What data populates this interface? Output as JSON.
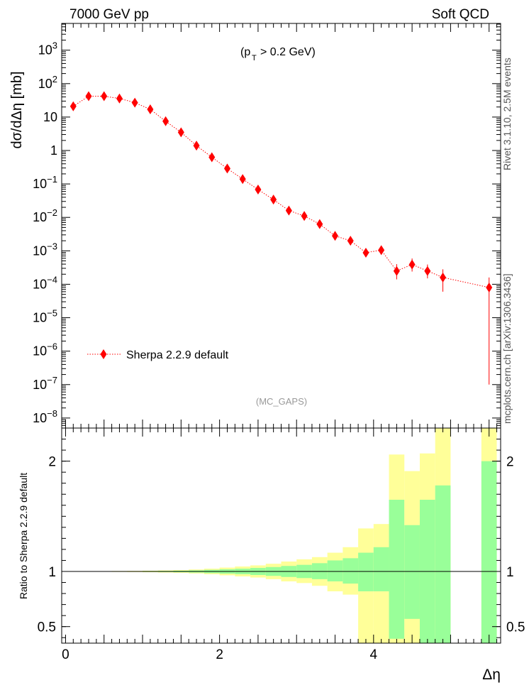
{
  "header": {
    "energy_label": "7000 GeV pp",
    "process_label": "Soft QCD"
  },
  "side_labels": {
    "rivet": "Rivet 3.1.10, 2.5M events",
    "mcplots": "mcplots.cern.ch [arXiv:1306.3436]"
  },
  "chart_data": [
    {
      "type": "scatter",
      "panel": "main",
      "scale": "log",
      "ylabel": "dσ/dΔη [mb]",
      "annotation": "(pT > 0.2 GeV)",
      "analysis_label": "(MC_GAPS)",
      "xlim": [
        -0.05,
        5.65
      ],
      "ylim_exp": [
        -8.3,
        3.8
      ],
      "y_tick_labels": [
        "10^-8",
        "10^-7",
        "10^-6",
        "10^-5",
        "10^-4",
        "10^-3",
        "10^-2",
        "10^-1",
        "1",
        "10",
        "10^2",
        "10^3"
      ],
      "legend": "top-left region, lower part",
      "series": [
        {
          "name": "Sherpa 2.2.9 default",
          "color": "#ff0000",
          "x": [
            0.1,
            0.3,
            0.5,
            0.7,
            0.9,
            1.1,
            1.3,
            1.5,
            1.7,
            1.9,
            2.1,
            2.3,
            2.5,
            2.7,
            2.9,
            3.1,
            3.3,
            3.5,
            3.7,
            3.9,
            4.1,
            4.3,
            4.5,
            4.7,
            4.9,
            5.5
          ],
          "y": [
            21,
            42,
            42,
            36,
            27,
            17,
            7.5,
            3.5,
            1.4,
            0.63,
            0.29,
            0.14,
            0.068,
            0.034,
            0.016,
            0.011,
            0.0063,
            0.0028,
            0.002,
            0.00088,
            0.00105,
            0.00025,
            0.00039,
            0.00025,
            0.00016,
            8e-05
          ],
          "yerr_up": [
            0,
            0,
            0,
            0,
            0,
            0,
            0,
            0,
            0,
            0,
            0,
            0,
            0,
            0,
            0,
            0,
            0,
            0,
            0,
            0.00018,
            0.00022,
            0.00015,
            0.0002,
            0.00014,
            0.00012,
            8e-05
          ],
          "yerr_down": [
            0,
            0,
            0,
            0,
            0,
            0,
            0,
            0,
            0,
            0,
            0,
            0,
            0,
            0,
            0,
            0,
            0,
            0,
            0,
            0.00016,
            0.0002,
            0.00011,
            0.00015,
            0.0001,
            0.0001,
            7.99e-05
          ]
        }
      ]
    },
    {
      "type": "area",
      "panel": "ratio",
      "ylabel": "Ratio to Sherpa 2.2.9 default",
      "xlabel": "Δη",
      "xlim": [
        -0.05,
        5.65
      ],
      "ylim": [
        0.35,
        2.3
      ],
      "y_ticks": [
        0.5,
        1,
        2
      ],
      "y_tick_labels": [
        "0.5",
        "1",
        "2"
      ],
      "x_ticks": [
        0,
        2,
        4
      ],
      "x_tick_labels": [
        "0",
        "2",
        "4"
      ],
      "reference_line": 1,
      "colors": {
        "inner_band": "#99ff99",
        "outer_band": "#ffff99"
      },
      "bins": [
        {
          "x0": 0.0,
          "x1": 0.2,
          "g_lo": 0.998,
          "g_hi": 1.002,
          "y_lo": 0.997,
          "y_hi": 1.003
        },
        {
          "x0": 0.2,
          "x1": 0.4,
          "g_lo": 0.998,
          "g_hi": 1.002,
          "y_lo": 0.997,
          "y_hi": 1.003
        },
        {
          "x0": 0.4,
          "x1": 0.6,
          "g_lo": 0.998,
          "g_hi": 1.002,
          "y_lo": 0.997,
          "y_hi": 1.003
        },
        {
          "x0": 0.6,
          "x1": 0.8,
          "g_lo": 0.998,
          "g_hi": 1.002,
          "y_lo": 0.996,
          "y_hi": 1.004
        },
        {
          "x0": 0.8,
          "x1": 1.0,
          "g_lo": 0.997,
          "g_hi": 1.003,
          "y_lo": 0.995,
          "y_hi": 1.005
        },
        {
          "x0": 1.0,
          "x1": 1.2,
          "g_lo": 0.996,
          "g_hi": 1.004,
          "y_lo": 0.993,
          "y_hi": 1.007
        },
        {
          "x0": 1.2,
          "x1": 1.4,
          "g_lo": 0.995,
          "g_hi": 1.005,
          "y_lo": 0.99,
          "y_hi": 1.01
        },
        {
          "x0": 1.4,
          "x1": 1.6,
          "g_lo": 0.993,
          "g_hi": 1.007,
          "y_lo": 0.987,
          "y_hi": 1.013
        },
        {
          "x0": 1.6,
          "x1": 1.8,
          "g_lo": 0.99,
          "g_hi": 1.01,
          "y_lo": 0.982,
          "y_hi": 1.018
        },
        {
          "x0": 1.8,
          "x1": 2.0,
          "g_lo": 0.985,
          "g_hi": 1.015,
          "y_lo": 0.975,
          "y_hi": 1.025
        },
        {
          "x0": 2.0,
          "x1": 2.2,
          "g_lo": 0.98,
          "g_hi": 1.02,
          "y_lo": 0.965,
          "y_hi": 1.035
        },
        {
          "x0": 2.2,
          "x1": 2.4,
          "g_lo": 0.975,
          "g_hi": 1.025,
          "y_lo": 0.955,
          "y_hi": 1.045
        },
        {
          "x0": 2.4,
          "x1": 2.6,
          "g_lo": 0.968,
          "g_hi": 1.032,
          "y_lo": 0.945,
          "y_hi": 1.055
        },
        {
          "x0": 2.6,
          "x1": 2.8,
          "g_lo": 0.96,
          "g_hi": 1.04,
          "y_lo": 0.93,
          "y_hi": 1.07
        },
        {
          "x0": 2.8,
          "x1": 3.0,
          "g_lo": 0.95,
          "g_hi": 1.05,
          "y_lo": 0.91,
          "y_hi": 1.09
        },
        {
          "x0": 3.0,
          "x1": 3.2,
          "g_lo": 0.94,
          "g_hi": 1.06,
          "y_lo": 0.895,
          "y_hi": 1.11
        },
        {
          "x0": 3.2,
          "x1": 3.4,
          "g_lo": 0.93,
          "g_hi": 1.075,
          "y_lo": 0.87,
          "y_hi": 1.13
        },
        {
          "x0": 3.4,
          "x1": 3.6,
          "g_lo": 0.91,
          "g_hi": 1.1,
          "y_lo": 0.82,
          "y_hi": 1.17
        },
        {
          "x0": 3.6,
          "x1": 3.8,
          "g_lo": 0.89,
          "g_hi": 1.12,
          "y_lo": 0.79,
          "y_hi": 1.22
        },
        {
          "x0": 3.8,
          "x1": 4.0,
          "g_lo": 0.82,
          "g_hi": 1.17,
          "y_lo": 0.35,
          "y_hi": 1.39
        },
        {
          "x0": 4.0,
          "x1": 4.2,
          "g_lo": 0.82,
          "g_hi": 1.22,
          "y_lo": 0.35,
          "y_hi": 1.43
        },
        {
          "x0": 4.2,
          "x1": 4.4,
          "g_lo": 0.39,
          "g_hi": 1.65,
          "y_lo": 0.35,
          "y_hi": 2.06
        },
        {
          "x0": 4.4,
          "x1": 4.6,
          "g_lo": 0.57,
          "g_hi": 1.42,
          "y_lo": 0.35,
          "y_hi": 1.91
        },
        {
          "x0": 4.6,
          "x1": 4.8,
          "g_lo": 0.35,
          "g_hi": 1.65,
          "y_lo": 0.35,
          "y_hi": 2.07
        },
        {
          "x0": 4.8,
          "x1": 5.0,
          "g_lo": 0.35,
          "g_hi": 1.78,
          "y_lo": 0.35,
          "y_hi": 2.3
        },
        {
          "x0": 5.4,
          "x1": 5.6,
          "g_lo": 0.35,
          "g_hi": 2.0,
          "y_lo": 0.35,
          "y_hi": 2.3
        }
      ]
    }
  ]
}
